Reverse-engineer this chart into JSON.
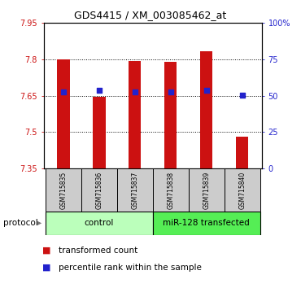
{
  "title": "GDS4415 / XM_003085462_at",
  "samples": [
    "GSM715835",
    "GSM715836",
    "GSM715837",
    "GSM715838",
    "GSM715839",
    "GSM715840"
  ],
  "transformed_counts": [
    7.8,
    7.645,
    7.793,
    7.79,
    7.832,
    7.48
  ],
  "percentile_ranks": [
    52.5,
    54.0,
    52.5,
    52.5,
    53.5,
    50.5
  ],
  "ylim_left": [
    7.35,
    7.95
  ],
  "ylim_right": [
    0,
    100
  ],
  "yticks_left": [
    7.35,
    7.5,
    7.65,
    7.8,
    7.95
  ],
  "yticks_right": [
    0,
    25,
    50,
    75,
    100
  ],
  "ytick_labels_right": [
    "0",
    "25",
    "50",
    "75",
    "100%"
  ],
  "bar_color": "#cc1111",
  "dot_color": "#2222cc",
  "group1_label": "control",
  "group2_label": "miR-128 transfected",
  "group1_color": "#bbffbb",
  "group2_color": "#55ee55",
  "protocol_label": "protocol",
  "legend_bar_label": "transformed count",
  "legend_dot_label": "percentile rank within the sample",
  "sample_box_color": "#cccccc",
  "bar_bottom": 7.35,
  "bar_width": 0.35,
  "grid_ticks": [
    7.5,
    7.65,
    7.8
  ],
  "title_fontsize": 9,
  "tick_fontsize": 7,
  "legend_fontsize": 7.5
}
